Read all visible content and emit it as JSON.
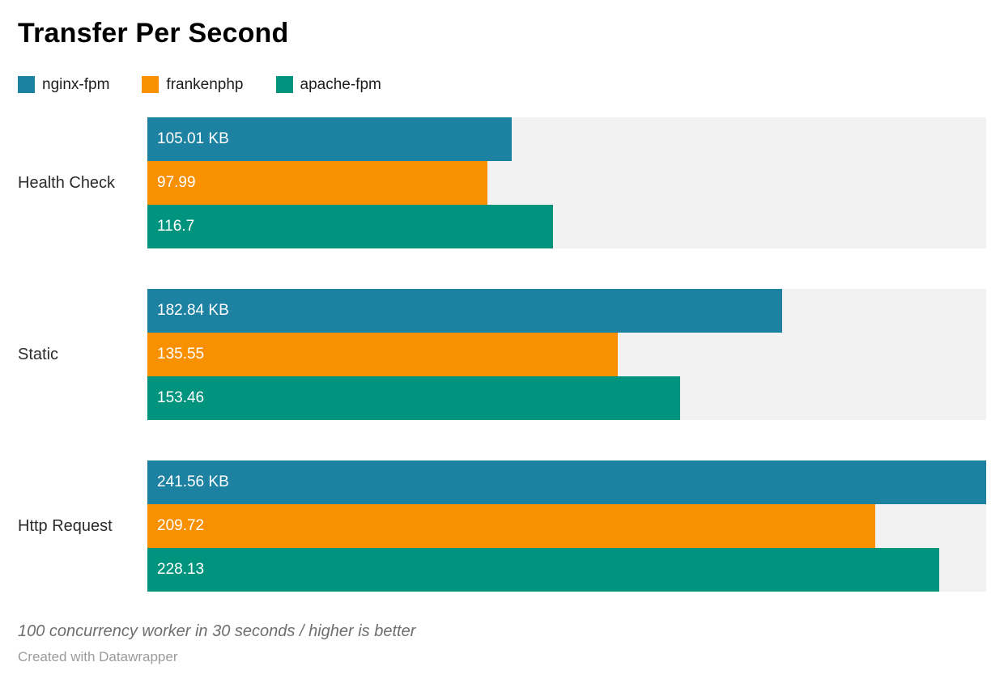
{
  "chart_data": {
    "type": "bar",
    "orientation": "horizontal",
    "title": "Transfer Per Second",
    "categories": [
      "Health Check",
      "Static",
      "Http Request"
    ],
    "series": [
      {
        "name": "nginx-fpm",
        "color": "#1d81a2",
        "values": [
          105.01,
          182.84,
          241.56
        ],
        "value_labels": [
          "105.01 KB",
          "182.84 KB",
          "241.56 KB"
        ]
      },
      {
        "name": "frankenphp",
        "color": "#f99000",
        "values": [
          97.99,
          135.55,
          209.72
        ],
        "value_labels": [
          "97.99",
          "135.55",
          "209.72"
        ]
      },
      {
        "name": "apache-fpm",
        "color": "#00947e",
        "values": [
          116.7,
          153.46,
          228.13
        ],
        "value_labels": [
          "116.7",
          "153.46",
          "228.13"
        ]
      }
    ],
    "xlim": [
      0,
      241.56
    ],
    "track_color": "#f2f2f2",
    "legend_position": "top",
    "grid": false,
    "notes": "100 concurrency worker in 30 seconds / higher is better",
    "attribution": "Created with Datawrapper"
  }
}
